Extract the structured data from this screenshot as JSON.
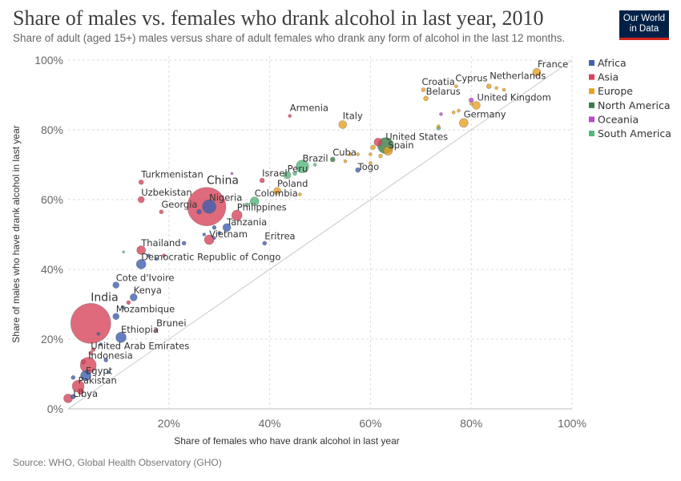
{
  "title": "Share of males vs. females who drank alcohol in last year, 2010",
  "subtitle": "Share of adult (aged 15+) males versus share of adult females who drank any form of alcohol in the last 12 months.",
  "logo": {
    "line1": "Our World",
    "line2": "in Data"
  },
  "source": "Source: WHO, Global Health Observatory (GHO)",
  "chart_data": {
    "type": "scatter",
    "xlabel": "Share of females who have drank alcohol in last year",
    "ylabel": "Share of males who have drank alcohol in last year",
    "xlim": [
      0,
      100
    ],
    "ylim": [
      0,
      100
    ],
    "xticks": [
      "20%",
      "40%",
      "60%",
      "80%",
      "100%"
    ],
    "yticks": [
      "0%",
      "20%",
      "40%",
      "60%",
      "80%",
      "100%"
    ],
    "grid": true,
    "legend_position": "right",
    "legend": [
      {
        "name": "Africa",
        "color": "#3f5fb0"
      },
      {
        "name": "Asia",
        "color": "#d6455a"
      },
      {
        "name": "Europe",
        "color": "#e8a020"
      },
      {
        "name": "North America",
        "color": "#3a7d44"
      },
      {
        "name": "Oceania",
        "color": "#b94bc9"
      },
      {
        "name": "South America",
        "color": "#55b87a"
      }
    ],
    "points": [
      {
        "label": "France",
        "region": "Europe",
        "x": 93,
        "y": 96.5,
        "r": 5
      },
      {
        "label": "Netherlands",
        "region": "Europe",
        "x": 83.5,
        "y": 92.5,
        "r": 3
      },
      {
        "label": "Cyprus",
        "region": "Europe",
        "x": 77,
        "y": 92.5,
        "r": 2
      },
      {
        "label": "Croatia",
        "region": "Europe",
        "x": 70.5,
        "y": 91.5,
        "r": 2.5
      },
      {
        "label": "Belarus",
        "region": "Europe",
        "x": 71,
        "y": 89,
        "r": 3
      },
      {
        "label": "United Kingdom",
        "region": "Europe",
        "x": 81,
        "y": 87,
        "r": 5
      },
      {
        "label": "Germany",
        "region": "Europe",
        "x": 78.5,
        "y": 82,
        "r": 5.5
      },
      {
        "label": "Armenia",
        "region": "Asia",
        "x": 44,
        "y": 84,
        "r": 2
      },
      {
        "label": "Italy",
        "region": "Europe",
        "x": 54.5,
        "y": 81.5,
        "r": 5
      },
      {
        "label": "United States",
        "region": "North America",
        "x": 63,
        "y": 75.5,
        "r": 10
      },
      {
        "label": "Spain",
        "region": "Europe",
        "x": 63.5,
        "y": 74,
        "r": 5.5
      },
      {
        "label": "Cuba",
        "region": "North America",
        "x": 52.5,
        "y": 71.5,
        "r": 3
      },
      {
        "label": "Brazil",
        "region": "South America",
        "x": 46.5,
        "y": 69.5,
        "r": 8
      },
      {
        "label": "Togo",
        "region": "Africa",
        "x": 57.5,
        "y": 68.5,
        "r": 3
      },
      {
        "label": "Peru",
        "region": "South America",
        "x": 43.5,
        "y": 67,
        "r": 4.5
      },
      {
        "label": "Israel",
        "region": "Asia",
        "x": 38.5,
        "y": 65.5,
        "r": 3
      },
      {
        "label": "Turkmenistan",
        "region": "Asia",
        "x": 14.5,
        "y": 65,
        "r": 3
      },
      {
        "label": "Poland",
        "region": "Europe",
        "x": 41.5,
        "y": 62.5,
        "r": 4.5
      },
      {
        "label": "Colombia",
        "region": "South America",
        "x": 37,
        "y": 59.5,
        "r": 5.5
      },
      {
        "label": "Uzbekistan",
        "region": "Asia",
        "x": 14.5,
        "y": 60,
        "r": 4
      },
      {
        "label": "China",
        "region": "Asia",
        "x": 27.5,
        "y": 58,
        "r": 24
      },
      {
        "label": "Nigeria",
        "region": "Africa",
        "x": 28,
        "y": 58,
        "r": 8.5
      },
      {
        "label": "Georgia",
        "region": "Asia",
        "x": 18.5,
        "y": 56.5,
        "r": 2.5
      },
      {
        "label": "Philippines",
        "region": "Asia",
        "x": 33.5,
        "y": 55.5,
        "r": 6.5
      },
      {
        "label": "Tanzania",
        "region": "Africa",
        "x": 31.5,
        "y": 52,
        "r": 5
      },
      {
        "label": "Vietnam",
        "region": "Asia",
        "x": 28,
        "y": 48.5,
        "r": 6
      },
      {
        "label": "Eritrea",
        "region": "Africa",
        "x": 39,
        "y": 47.5,
        "r": 2.5
      },
      {
        "label": "Thailand",
        "region": "Asia",
        "x": 14.5,
        "y": 45.5,
        "r": 5.5
      },
      {
        "label": "Democratic Republic of Congo",
        "region": "Africa",
        "x": 14.5,
        "y": 41.5,
        "r": 6
      },
      {
        "label": "Cote d'Ivoire",
        "region": "Africa",
        "x": 9.5,
        "y": 35.5,
        "r": 4
      },
      {
        "label": "Kenya",
        "region": "Africa",
        "x": 13,
        "y": 32,
        "r": 4.5
      },
      {
        "label": "Mozambique",
        "region": "Africa",
        "x": 9.5,
        "y": 26.5,
        "r": 4
      },
      {
        "label": "India",
        "region": "Asia",
        "x": 4.5,
        "y": 24.5,
        "r": 25
      },
      {
        "label": "Brunei",
        "region": "Asia",
        "x": 17.5,
        "y": 22.5,
        "r": 2
      },
      {
        "label": "Ethiopia",
        "region": "Africa",
        "x": 10.5,
        "y": 20.5,
        "r": 6.5
      },
      {
        "label": "United Arab Emirates",
        "region": "Asia",
        "x": 4.5,
        "y": 16,
        "r": 2.5
      },
      {
        "label": "Indonesia",
        "region": "Asia",
        "x": 4,
        "y": 12.5,
        "r": 10
      },
      {
        "label": "Egypt",
        "region": "Africa",
        "x": 3.5,
        "y": 9.5,
        "r": 6.5
      },
      {
        "label": "Pakistan",
        "region": "Asia",
        "x": 2,
        "y": 6.5,
        "r": 7.5
      },
      {
        "label": "Libya",
        "region": "Africa",
        "x": 1,
        "y": 3.5,
        "r": 3
      },
      {
        "label": "",
        "region": "Asia",
        "x": 0,
        "y": 3,
        "r": 5.5
      },
      {
        "label": "",
        "region": "Asia",
        "x": 2.5,
        "y": 5,
        "r": 4
      },
      {
        "label": "",
        "region": "Africa",
        "x": 1,
        "y": 9,
        "r": 2.5
      },
      {
        "label": "",
        "region": "Asia",
        "x": 3,
        "y": 13.5,
        "r": 3
      },
      {
        "label": "",
        "region": "Asia",
        "x": 5,
        "y": 17,
        "r": 2.5
      },
      {
        "label": "",
        "region": "Africa",
        "x": 6.5,
        "y": 18.5,
        "r": 2
      },
      {
        "label": "",
        "region": "Africa",
        "x": 7.5,
        "y": 14,
        "r": 2.5
      },
      {
        "label": "",
        "region": "Africa",
        "x": 8,
        "y": 10.5,
        "r": 2
      },
      {
        "label": "",
        "region": "Africa",
        "x": 6,
        "y": 21.5,
        "r": 2
      },
      {
        "label": "",
        "region": "Asia",
        "x": 12,
        "y": 30.5,
        "r": 2.5
      },
      {
        "label": "",
        "region": "Africa",
        "x": 11,
        "y": 29,
        "r": 2
      },
      {
        "label": "",
        "region": "Africa",
        "x": 16,
        "y": 44,
        "r": 2
      },
      {
        "label": "",
        "region": "Africa",
        "x": 17.5,
        "y": 43,
        "r": 2
      },
      {
        "label": "",
        "region": "Asia",
        "x": 19,
        "y": 44,
        "r": 2
      },
      {
        "label": "",
        "region": "Africa",
        "x": 23,
        "y": 47.5,
        "r": 2.5
      },
      {
        "label": "",
        "region": "South America",
        "x": 11,
        "y": 45,
        "r": 1.5
      },
      {
        "label": "",
        "region": "Oceania",
        "x": 32.5,
        "y": 67.5,
        "r": 1.5
      },
      {
        "label": "",
        "region": "Africa",
        "x": 26,
        "y": 56.5,
        "r": 3
      },
      {
        "label": "",
        "region": "Africa",
        "x": 29,
        "y": 52,
        "r": 2.5
      },
      {
        "label": "",
        "region": "Africa",
        "x": 27,
        "y": 50,
        "r": 2
      },
      {
        "label": "",
        "region": "Africa",
        "x": 29,
        "y": 49,
        "r": 2
      },
      {
        "label": "",
        "region": "Africa",
        "x": 30,
        "y": 50.5,
        "r": 2
      },
      {
        "label": "",
        "region": "South America",
        "x": 35.5,
        "y": 58.5,
        "r": 2.5
      },
      {
        "label": "",
        "region": "South America",
        "x": 45,
        "y": 67.5,
        "r": 2.5
      },
      {
        "label": "",
        "region": "South America",
        "x": 49,
        "y": 70,
        "r": 2
      },
      {
        "label": "",
        "region": "Europe",
        "x": 46,
        "y": 61.5,
        "r": 2
      },
      {
        "label": "",
        "region": "Europe",
        "x": 55,
        "y": 71,
        "r": 2
      },
      {
        "label": "",
        "region": "Europe",
        "x": 56,
        "y": 73,
        "r": 2
      },
      {
        "label": "",
        "region": "Europe",
        "x": 60,
        "y": 73,
        "r": 2
      },
      {
        "label": "",
        "region": "Europe",
        "x": 60.5,
        "y": 75,
        "r": 3
      },
      {
        "label": "",
        "region": "Europe",
        "x": 57.5,
        "y": 73,
        "r": 2
      },
      {
        "label": "",
        "region": "Europe",
        "x": 60,
        "y": 70.5,
        "r": 2
      },
      {
        "label": "",
        "region": "Europe",
        "x": 62,
        "y": 72.5,
        "r": 2.5
      },
      {
        "label": "",
        "region": "Asia",
        "x": 61.5,
        "y": 76.5,
        "r": 5
      },
      {
        "label": "",
        "region": "South America",
        "x": 73.5,
        "y": 80.5,
        "r": 2.5
      },
      {
        "label": "",
        "region": "Europe",
        "x": 73.5,
        "y": 81,
        "r": 2
      },
      {
        "label": "",
        "region": "Oceania",
        "x": 74,
        "y": 84.5,
        "r": 2
      },
      {
        "label": "",
        "region": "Europe",
        "x": 76.5,
        "y": 85,
        "r": 2
      },
      {
        "label": "",
        "region": "Europe",
        "x": 77.5,
        "y": 85.5,
        "r": 2
      },
      {
        "label": "",
        "region": "Europe",
        "x": 80,
        "y": 87.5,
        "r": 2
      },
      {
        "label": "",
        "region": "Oceania",
        "x": 80,
        "y": 88.5,
        "r": 3
      },
      {
        "label": "",
        "region": "Europe",
        "x": 85,
        "y": 92,
        "r": 2
      },
      {
        "label": "",
        "region": "Europe",
        "x": 86.5,
        "y": 91.5,
        "r": 2
      }
    ],
    "labels": [
      {
        "text": "France",
        "dx": 1,
        "dy": -6,
        "big": false
      },
      {
        "text": "Netherlands",
        "dx": 1,
        "dy": -9,
        "big": false
      },
      {
        "text": "Cyprus",
        "dx": -1,
        "dy": -6,
        "big": false
      },
      {
        "text": "Croatia",
        "dx": -2,
        "dy": -6,
        "big": false
      },
      {
        "text": "Belarus",
        "dx": 0,
        "dy": -5,
        "big": false
      },
      {
        "text": "United Kingdom",
        "dx": 1,
        "dy": -6,
        "big": false
      },
      {
        "text": "Germany",
        "dx": 0,
        "dy": -7,
        "big": false
      },
      {
        "text": "Armenia",
        "dx": 0,
        "dy": -6,
        "big": false
      },
      {
        "text": "Italy",
        "dx": 0,
        "dy": -7,
        "big": false
      },
      {
        "text": "United States",
        "dx": 0,
        "dy": -7,
        "big": false
      },
      {
        "text": "Spain",
        "dx": 0,
        "dy": -3,
        "big": false
      },
      {
        "text": "Cuba",
        "dx": 0,
        "dy": -5,
        "big": false
      },
      {
        "text": "Brazil",
        "dx": 0,
        "dy": -6,
        "big": false
      },
      {
        "text": "Togo",
        "dx": 0,
        "dy": 0,
        "big": false
      },
      {
        "text": "Peru",
        "dx": 0,
        "dy": -4,
        "big": false
      },
      {
        "text": "Israel",
        "dx": 0,
        "dy": -5,
        "big": false
      },
      {
        "text": "Turkmenistan",
        "dx": 0,
        "dy": -6,
        "big": false
      },
      {
        "text": "Poland",
        "dx": 0,
        "dy": -5,
        "big": false
      },
      {
        "text": "Colombia",
        "dx": 0,
        "dy": -6,
        "big": false
      },
      {
        "text": "Uzbekistan",
        "dx": 0,
        "dy": -5,
        "big": false
      },
      {
        "text": "China",
        "dx": 0,
        "dy": -28,
        "big": true
      },
      {
        "text": "Nigeria",
        "dx": 0,
        "dy": -7,
        "big": false
      },
      {
        "text": "Georgia",
        "dx": 0,
        "dy": -5,
        "big": false
      },
      {
        "text": "Philippines",
        "dx": 0,
        "dy": -6,
        "big": false
      },
      {
        "text": "Tanzania",
        "dx": 0,
        "dy": -3,
        "big": false
      },
      {
        "text": "Vietnam",
        "dx": 0,
        "dy": -3,
        "big": false
      },
      {
        "text": "Eritrea",
        "dx": 0,
        "dy": -5,
        "big": false
      },
      {
        "text": "Thailand",
        "dx": 0,
        "dy": -5,
        "big": false
      },
      {
        "text": "Democratic Republic of Congo",
        "dx": 0,
        "dy": -5,
        "big": false
      },
      {
        "text": "Cote d'Ivoire",
        "dx": 0,
        "dy": -5,
        "big": false
      },
      {
        "text": "Kenya",
        "dx": 0,
        "dy": -5,
        "big": false
      },
      {
        "text": "Mozambique",
        "dx": 0,
        "dy": -5,
        "big": false
      },
      {
        "text": "India",
        "dx": 0,
        "dy": -28,
        "big": true
      },
      {
        "text": "Brunei",
        "dx": 0,
        "dy": -5,
        "big": false
      },
      {
        "text": "Ethiopia",
        "dx": 0,
        "dy": -6,
        "big": false
      },
      {
        "text": "United Arab Emirates",
        "dx": 0,
        "dy": -5,
        "big": false
      },
      {
        "text": "Indonesia",
        "dx": 0,
        "dy": -8,
        "big": false
      },
      {
        "text": "Egypt",
        "dx": 0,
        "dy": -2,
        "big": false
      },
      {
        "text": "Pakistan",
        "dx": 0,
        "dy": -3,
        "big": false
      },
      {
        "text": "Libya",
        "dx": 0,
        "dy": 0,
        "big": false
      }
    ]
  }
}
